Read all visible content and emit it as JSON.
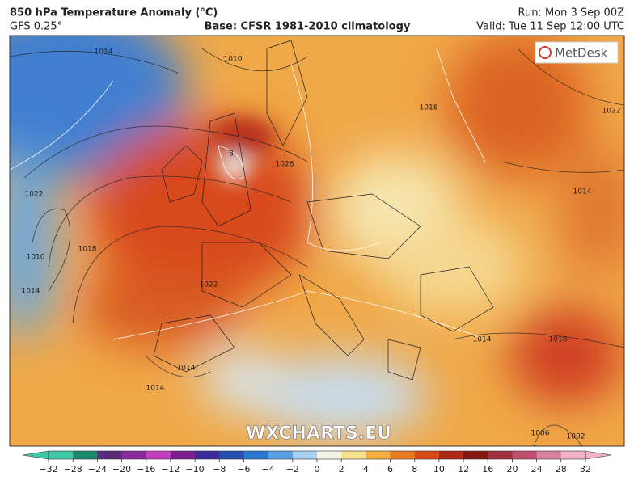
{
  "header": {
    "title": "850 hPa Temperature Anomaly (°C)",
    "model": "GFS 0.25°",
    "base": "Base: CFSR 1981-2010 climatology",
    "run": "Run: Mon 3 Sep 00Z",
    "valid": "Valid: Tue 11 Sep 12:00 UTC"
  },
  "map": {
    "logo": "MetDesk",
    "watermark": "WXCHARTS.EU",
    "isobar_labels": [
      1014,
      1010,
      1018,
      1022,
      1026,
      1022,
      1018,
      1010,
      1014,
      1022,
      1014,
      8,
      1014,
      1014,
      1018,
      1014,
      1006,
      1002
    ]
  },
  "colorbar": {
    "ticks": [
      {
        "value": -32,
        "label": "−32"
      },
      {
        "value": -28,
        "label": "−28"
      },
      {
        "value": -24,
        "label": "−24"
      },
      {
        "value": -20,
        "label": "−20"
      },
      {
        "value": -16,
        "label": "−16"
      },
      {
        "value": -12,
        "label": "−12"
      },
      {
        "value": -10,
        "label": "−10"
      },
      {
        "value": -8,
        "label": "−8"
      },
      {
        "value": -6,
        "label": "−6"
      },
      {
        "value": -4,
        "label": "−4"
      },
      {
        "value": -2,
        "label": "−2"
      },
      0,
      2,
      4,
      6,
      8,
      10,
      12,
      16,
      20,
      24,
      28,
      32
    ],
    "colors": [
      "#3fc9a6",
      "#1c8a6a",
      "#5a2a7a",
      "#8a2a9a",
      "#c040c0",
      "#7a2090",
      "#3a2a9a",
      "#2850b0",
      "#2a78d0",
      "#5aa0e0",
      "#a8d0f0",
      "#f4f2e4",
      "#f5e090",
      "#f5b040",
      "#e87a20",
      "#d84a18",
      "#b02818",
      "#801810",
      "#a03040",
      "#c05070",
      "#d880a0",
      "#f0b0c8"
    ],
    "under_color": "#3fc9a6",
    "over_color": "#f0b0c8"
  }
}
